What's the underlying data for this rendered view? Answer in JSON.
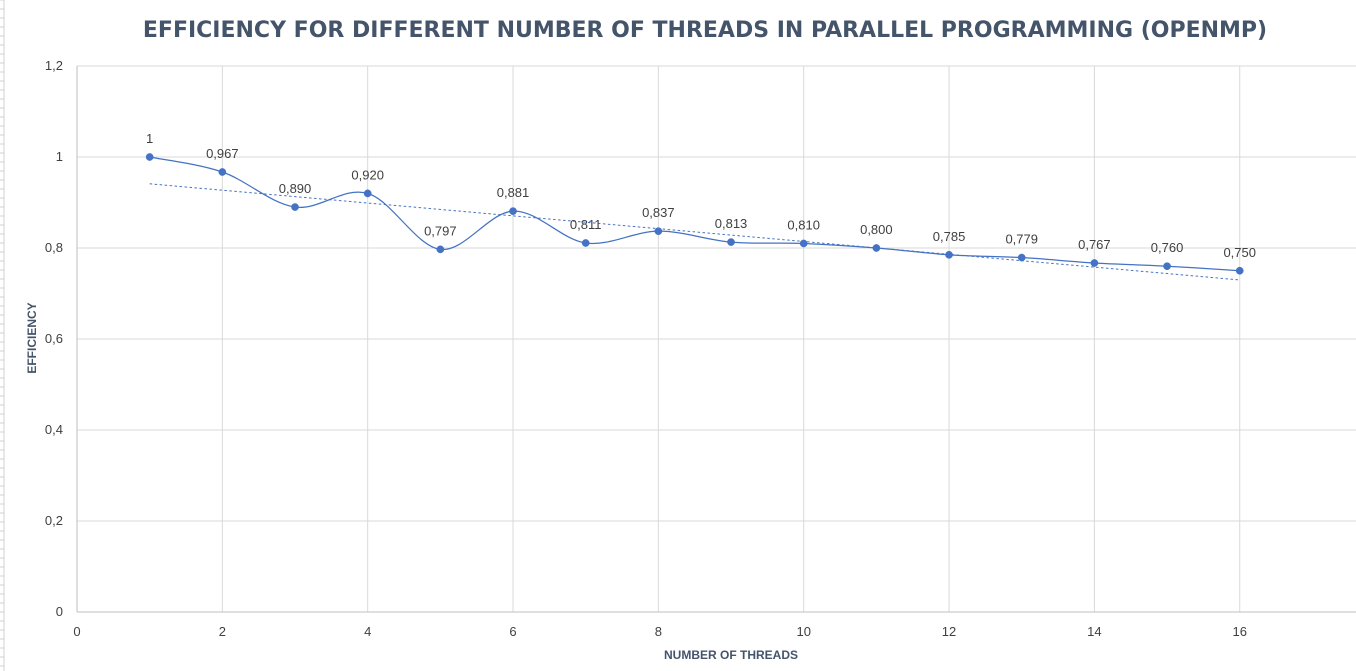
{
  "chart_data": {
    "type": "scatter",
    "title": "EFFICIENCY FOR DIFFERENT NUMBER OF THREADS IN PARALLEL PROGRAMMING (OPENMP)",
    "xlabel": "NUMBER OF THREADS",
    "ylabel": "EFFICIENCY",
    "xlim": [
      0,
      17.6
    ],
    "ylim": [
      0,
      1.2
    ],
    "x_ticks": [
      0,
      2,
      4,
      6,
      8,
      10,
      12,
      14,
      16
    ],
    "x_tick_labels": [
      "0",
      "2",
      "4",
      "6",
      "8",
      "10",
      "12",
      "14",
      "16"
    ],
    "y_ticks": [
      0,
      0.2,
      0.4,
      0.6,
      0.8,
      1,
      1.2
    ],
    "y_tick_labels": [
      "0",
      "0,2",
      "0,4",
      "0,6",
      "0,8",
      "1",
      "1,2"
    ],
    "grid": true,
    "legend": "none",
    "smoothed_line": true,
    "trendline": "linear (dotted)",
    "series": [
      {
        "x": [
          1,
          2,
          3,
          4,
          5,
          6,
          7,
          8,
          9,
          10,
          11,
          12,
          13,
          14,
          15,
          16
        ],
        "values": [
          1,
          0.967,
          0.89,
          0.92,
          0.797,
          0.881,
          0.811,
          0.837,
          0.813,
          0.81,
          0.8,
          0.785,
          0.779,
          0.767,
          0.76,
          0.75
        ],
        "data_labels": [
          "1",
          "0,967",
          "0,890",
          "0,920",
          "0,797",
          "0,881",
          "0,811",
          "0,837",
          "0,813",
          "0,810",
          "0,800",
          "0,785",
          "0,779",
          "0,767",
          "0,760",
          "0,750"
        ],
        "color": "#4472c4"
      }
    ]
  }
}
